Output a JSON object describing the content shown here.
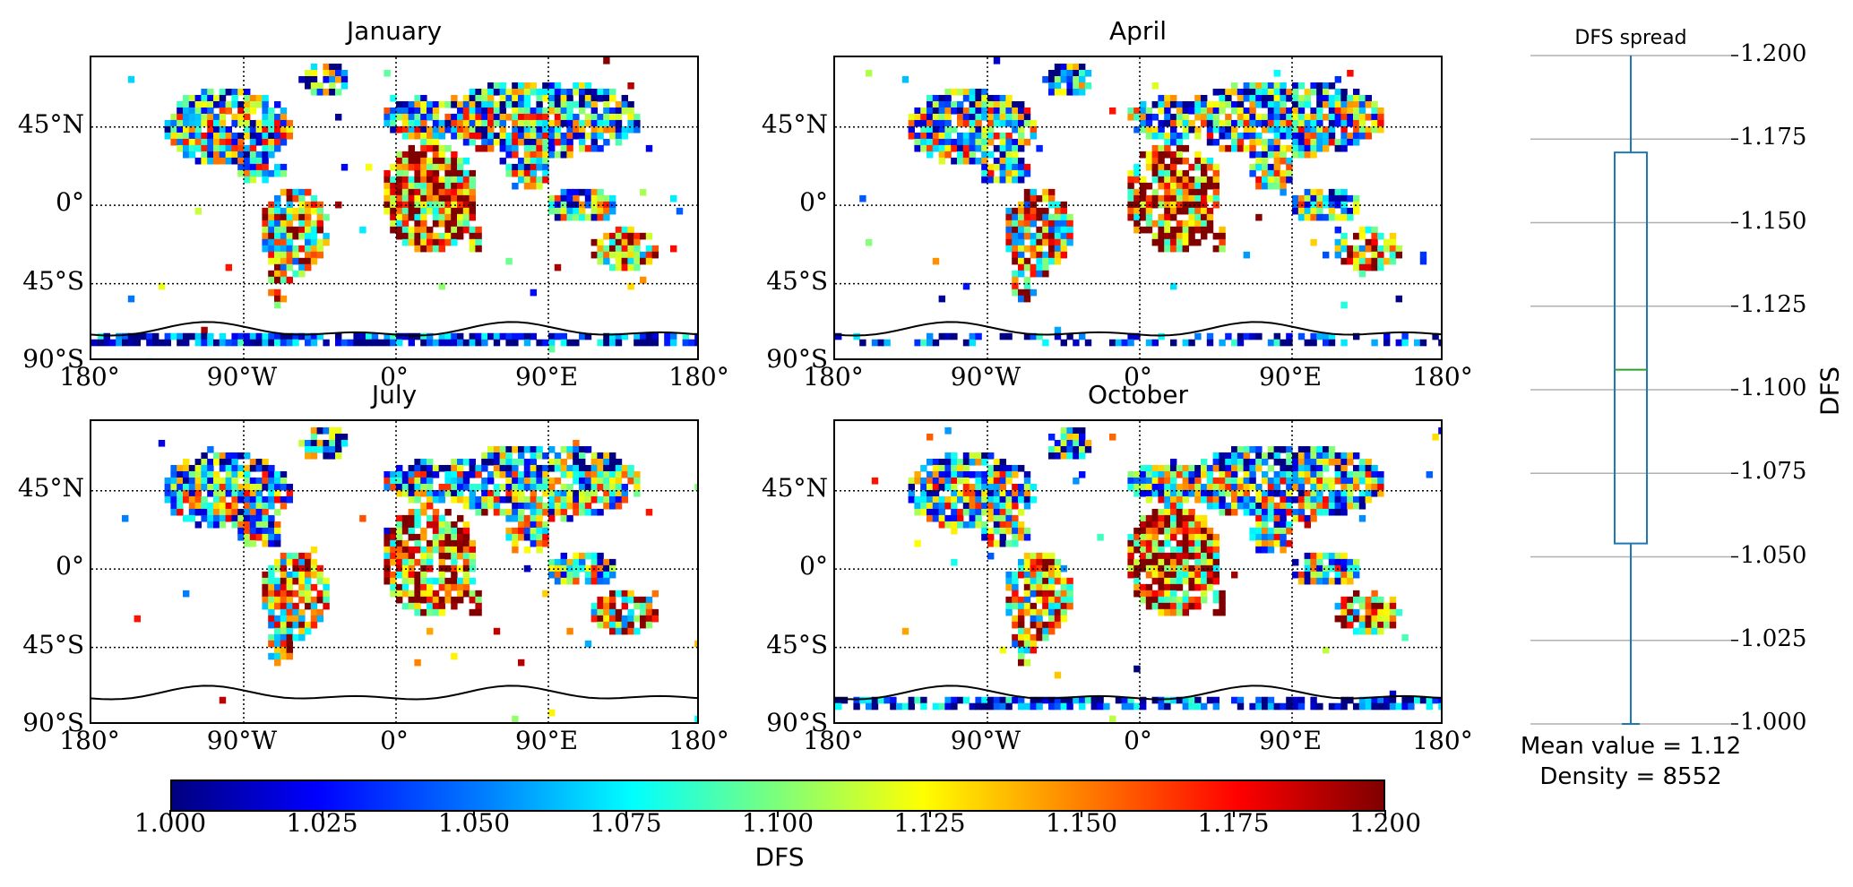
{
  "chart_data": [
    {
      "type": "heatmap",
      "panels": [
        {
          "title": "January"
        },
        {
          "title": "April"
        },
        {
          "title": "July"
        },
        {
          "title": "October"
        }
      ],
      "lat_ticks": [
        "45°N",
        "0°",
        "45°S",
        "90°S"
      ],
      "lon_ticks": [
        "180°",
        "90°W",
        "0°",
        "90°E",
        "180°"
      ],
      "colorbar": {
        "label": "DFS",
        "range": [
          1.0,
          1.2
        ],
        "ticks": [
          "1.000",
          "1.025",
          "1.050",
          "1.075",
          "1.100",
          "1.125",
          "1.150",
          "1.175",
          "1.200"
        ],
        "colormap": "jet"
      },
      "grid": true
    },
    {
      "type": "box",
      "title": "DFS spread",
      "ylabel": "DFS",
      "ylim": [
        1.0,
        1.2
      ],
      "yticks": [
        "1.200",
        "1.175",
        "1.150",
        "1.125",
        "1.100",
        "1.075",
        "1.050",
        "1.025",
        "1.000"
      ],
      "whisker_low": 1.0,
      "q1": 1.054,
      "median": 1.106,
      "q3": 1.171,
      "whisker_high": 1.2,
      "stats": [
        "Mean value = 1.12",
        "Density = 8552"
      ],
      "colors": {
        "box": "#1f77b4",
        "median": "#2ca02c",
        "grid": "#b0b0b0"
      }
    }
  ]
}
